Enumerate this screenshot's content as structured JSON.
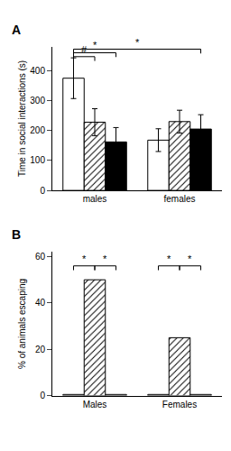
{
  "chart_data": [
    {
      "type": "bar",
      "title": "A",
      "categories": [
        "males",
        "females"
      ],
      "series": [
        {
          "color": "white",
          "values": [
            375,
            168
          ],
          "errors": [
            68,
            38
          ]
        },
        {
          "color": "white",
          "marker": "hatch",
          "values": [
            228,
            230
          ],
          "errors": [
            45,
            38
          ]
        },
        {
          "color": "black",
          "values": [
            162,
            205
          ],
          "errors": [
            48,
            48
          ]
        }
      ],
      "ylabel": "Time in social interactions (s)",
      "ylim": [
        0,
        480
      ],
      "yticks": [
        0,
        100,
        200,
        300,
        400
      ],
      "grid": false,
      "annotations": [
        {
          "text": "#",
          "y": 447,
          "from": [
            0,
            0
          ],
          "to": [
            0,
            1
          ]
        },
        {
          "text": "*",
          "y": 460,
          "from": [
            0,
            0
          ],
          "to": [
            0,
            2
          ]
        },
        {
          "text": "*",
          "y": 472,
          "from": [
            0,
            0
          ],
          "to": [
            1,
            2
          ]
        }
      ]
    },
    {
      "type": "bar",
      "title": "B",
      "categories": [
        "Males",
        "Females"
      ],
      "series": [
        {
          "color": "white",
          "values": [
            0.5,
            0.5
          ]
        },
        {
          "color": "white",
          "marker": "hatch",
          "values": [
            50,
            25
          ]
        },
        {
          "color": "white",
          "values": [
            0.5,
            0.5
          ]
        }
      ],
      "ylabel": "% of animals escaping",
      "ylim": [
        0,
        62
      ],
      "yticks": [
        0,
        20,
        40,
        60
      ],
      "grid": false,
      "annotations": [
        {
          "text": "*",
          "y": 56,
          "from": [
            0,
            0
          ],
          "to": [
            0,
            1
          ]
        },
        {
          "text": "*",
          "y": 56,
          "from": [
            0,
            1
          ],
          "to": [
            0,
            2
          ]
        },
        {
          "text": "*",
          "y": 56,
          "from": [
            1,
            0
          ],
          "to": [
            1,
            1
          ]
        },
        {
          "text": "*",
          "y": 56,
          "from": [
            1,
            1
          ],
          "to": [
            1,
            2
          ]
        }
      ]
    }
  ]
}
